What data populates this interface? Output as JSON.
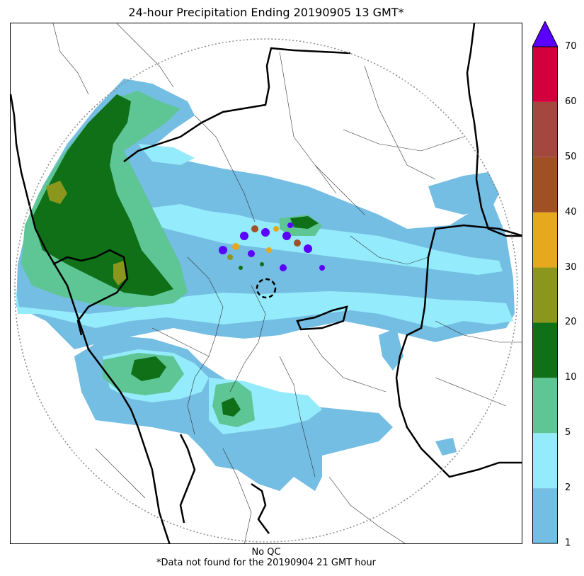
{
  "title": "24-hour Precipitation Ending 20190905 13 GMT*",
  "footnote": {
    "qc": "No QC",
    "missing": "*Data not found for the 20190904 21 GMT hour"
  },
  "colorbar": {
    "ticks": [
      "1",
      "2",
      "5",
      "10",
      "20",
      "30",
      "40",
      "50",
      "60",
      "70"
    ],
    "colors": [
      "#74bde3",
      "#94ebfb",
      "#5ec594",
      "#0f7018",
      "#8b961d",
      "#e6a81c",
      "#a14f24",
      "#a4483f",
      "#d4003d"
    ],
    "extend_color": "#5a00ff"
  },
  "map": {
    "coverage_ring_color": "#888888",
    "radar_site_marker": "dashed-circle",
    "colors": {
      "light_blue": "#74bde3",
      "cyan": "#94ebfb",
      "light_green": "#5ec594",
      "green": "#0f7018",
      "olive": "#8b961d",
      "purple": "#5a00ff"
    }
  }
}
